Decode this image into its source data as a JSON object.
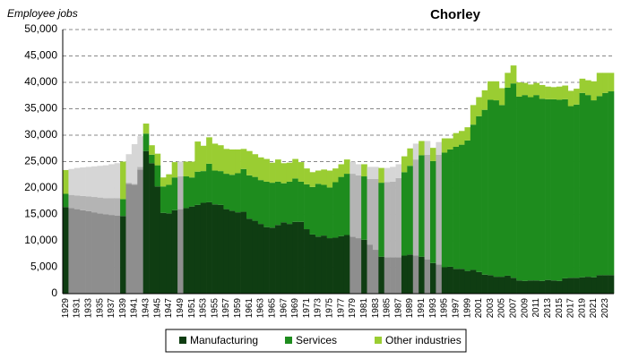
{
  "chart_data": {
    "type": "stacked_bar",
    "title": "Chorley",
    "y_label": "Employee jobs",
    "categories": [
      "1929",
      null,
      "1931",
      null,
      "1933",
      null,
      "1935",
      null,
      "1937",
      null,
      "1939",
      null,
      "1941",
      null,
      "1943",
      null,
      "1945",
      null,
      "1947",
      null,
      "1949",
      null,
      "1951",
      null,
      "1953",
      null,
      "1955",
      null,
      "1957",
      null,
      "1959",
      null,
      "1961",
      null,
      "1963",
      null,
      "1965",
      null,
      "1967",
      null,
      "1969",
      null,
      "1971",
      null,
      "1973",
      null,
      "1975",
      null,
      "1977",
      null,
      "1979",
      null,
      "1981",
      null,
      "1983",
      null,
      "1985",
      null,
      "1987",
      null,
      "1989",
      null,
      "1991",
      null,
      "1993",
      null,
      "1995",
      null,
      "1997",
      null,
      "1999",
      null,
      "2001",
      null,
      "2003",
      null,
      "2005",
      null,
      "2007",
      null,
      "2009",
      null,
      "2011",
      null,
      "2013",
      null,
      "2015",
      null,
      "2017",
      null,
      "2019",
      null,
      "2021",
      null,
      "2023",
      null
    ],
    "interpolated": [
      false,
      true,
      true,
      true,
      true,
      true,
      true,
      true,
      true,
      true,
      false,
      true,
      true,
      true,
      false,
      false,
      false,
      false,
      false,
      false,
      true,
      false,
      false,
      false,
      false,
      false,
      false,
      false,
      false,
      false,
      false,
      false,
      false,
      false,
      false,
      false,
      false,
      false,
      false,
      false,
      false,
      false,
      false,
      false,
      false,
      false,
      false,
      false,
      false,
      false,
      true,
      true,
      false,
      true,
      true,
      false,
      true,
      true,
      true,
      false,
      false,
      true,
      false,
      true,
      false,
      true,
      false,
      false,
      false,
      false,
      false,
      false,
      false,
      false,
      false,
      false,
      false,
      false,
      false,
      false,
      false,
      false,
      false,
      false,
      false,
      false,
      false,
      false,
      false,
      false,
      false,
      false,
      false,
      false,
      false,
      false
    ],
    "series": [
      {
        "name": "Manufacturing",
        "color": "#0f3d12",
        "interpolated_color": "#8e8e8e",
        "values": [
          16400,
          16200,
          16000,
          15800,
          15600,
          15400,
          15200,
          15000,
          14900,
          14800,
          14700,
          20800,
          20600,
          23500,
          27000,
          24700,
          20300,
          15300,
          15200,
          15800,
          16000,
          16200,
          16500,
          16800,
          17200,
          17300,
          16900,
          16800,
          16000,
          15700,
          15400,
          15500,
          14200,
          13800,
          13200,
          12600,
          12500,
          13000,
          13500,
          13200,
          13600,
          13600,
          12200,
          11200,
          10800,
          11000,
          10500,
          10600,
          10900,
          11100,
          10800,
          10500,
          10200,
          9300,
          8300,
          7000,
          6900,
          6900,
          6900,
          7200,
          7400,
          7200,
          7000,
          6500,
          5800,
          5500,
          5000,
          5100,
          4700,
          4700,
          4300,
          4500,
          4100,
          3600,
          3500,
          3200,
          3200,
          3400,
          3000,
          2500,
          2400,
          2500,
          2500,
          2400,
          2600,
          2500,
          2400,
          2900,
          3000,
          3000,
          3100,
          3200,
          3100,
          3500,
          3500,
          3500
        ]
      },
      {
        "name": "Services",
        "color": "#1e8c1e",
        "interpolated_color": "#b4b4b4",
        "values": [
          2500,
          2500,
          2600,
          2700,
          2800,
          2900,
          3000,
          3100,
          3200,
          3300,
          3200,
          200,
          200,
          500,
          3300,
          1600,
          4000,
          5000,
          5400,
          6200,
          6200,
          6000,
          5500,
          6300,
          6000,
          7300,
          6400,
          6400,
          6700,
          6800,
          7400,
          8100,
          8200,
          8300,
          8300,
          8600,
          8500,
          8200,
          7400,
          8000,
          8200,
          7600,
          8500,
          9000,
          10000,
          9600,
          9600,
          10500,
          11200,
          11600,
          11900,
          11900,
          12000,
          12400,
          13400,
          14000,
          14200,
          14300,
          15000,
          15800,
          16800,
          18200,
          19200,
          19800,
          19300,
          20800,
          21700,
          22200,
          23100,
          23500,
          24700,
          27500,
          29500,
          31200,
          33200,
          33400,
          32500,
          35600,
          36800,
          34800,
          35200,
          34700,
          35100,
          34500,
          34200,
          34300,
          34300,
          33900,
          32500,
          32800,
          34900,
          34400,
          33500,
          33900,
          34500,
          34800
        ]
      },
      {
        "name": "Other industries",
        "color": "#9acd32",
        "interpolated_color": "#d6d6d6",
        "values": [
          4500,
          4900,
          5200,
          5400,
          5600,
          5800,
          6000,
          6200,
          6400,
          6600,
          7100,
          5400,
          7500,
          5800,
          1900,
          1800,
          2200,
          1700,
          2000,
          2900,
          2800,
          2800,
          3000,
          5700,
          4800,
          5000,
          5100,
          4900,
          4700,
          4800,
          4500,
          3800,
          4600,
          4300,
          4300,
          4300,
          3800,
          4200,
          3800,
          3600,
          3700,
          3700,
          3000,
          2800,
          2500,
          2900,
          3200,
          2600,
          2400,
          2700,
          2300,
          2100,
          2300,
          2300,
          2300,
          2800,
          2700,
          2800,
          2600,
          3000,
          3300,
          3000,
          2700,
          2600,
          2500,
          2400,
          2700,
          2100,
          2600,
          2600,
          2500,
          3700,
          3600,
          3700,
          3500,
          3600,
          3200,
          2800,
          3400,
          2700,
          2300,
          2400,
          2300,
          2600,
          2400,
          2300,
          2500,
          2600,
          2900,
          3000,
          2700,
          2800,
          3600,
          4400,
          3800,
          3500
        ]
      }
    ],
    "ylim": [
      0,
      50000
    ],
    "yticks": [
      0,
      {
        "value": 5000,
        "label": "5,000"
      },
      {
        "value": 10000,
        "label": "10,000"
      },
      {
        "value": 15000,
        "label": "15,000"
      },
      {
        "value": 20000,
        "label": "20,000"
      },
      {
        "value": 25000,
        "label": "25,000"
      },
      {
        "value": 30000,
        "label": "30,000"
      },
      {
        "value": 35000,
        "label": "35,000"
      },
      {
        "value": 40000,
        "label": "40,000"
      },
      {
        "value": 45000,
        "label": "45,000"
      },
      {
        "value": 50000,
        "label": "50,000"
      }
    ],
    "grid": true,
    "legend": "bottom"
  }
}
